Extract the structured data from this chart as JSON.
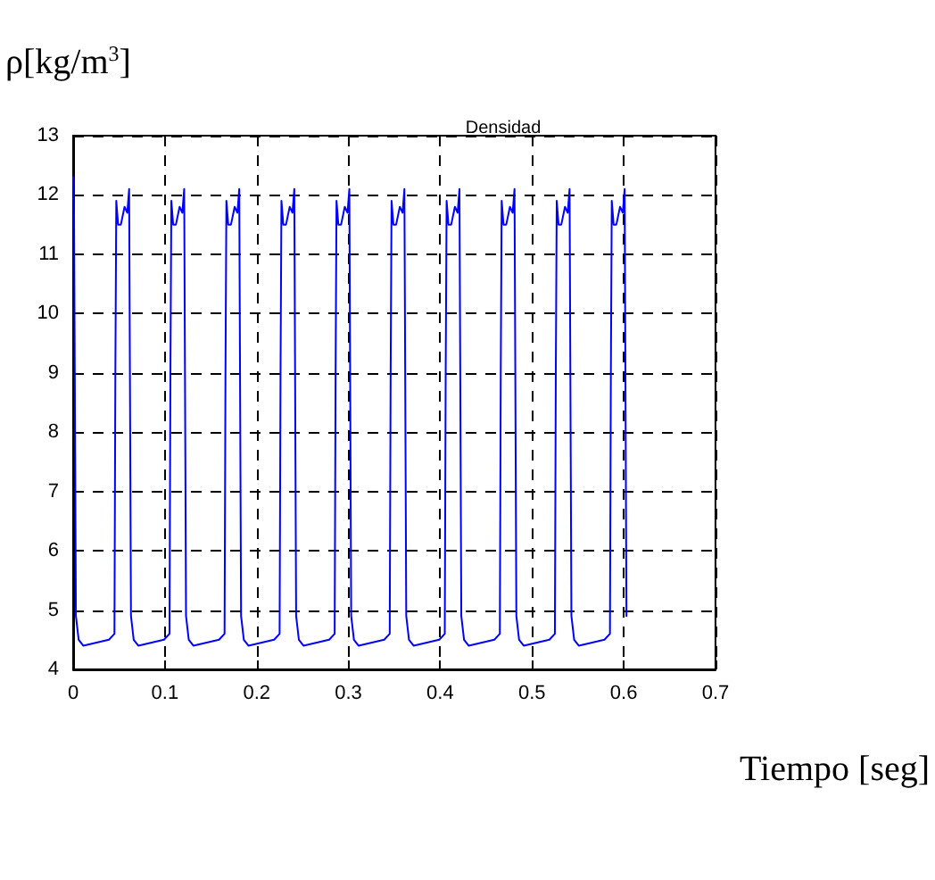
{
  "chart_data": {
    "type": "line",
    "title": "Densidad",
    "xlabel": "Tiempo [seg]",
    "ylabel": "ρ[kg/m$^{3}$]",
    "xlim": [
      0,
      0.7
    ],
    "xticks": [
      0,
      0.1,
      0.2,
      0.3,
      0.4,
      0.5,
      0.6,
      0.7
    ],
    "ylim": [
      4,
      13
    ],
    "yticks": [
      4,
      5,
      6,
      7,
      8,
      9,
      10,
      11,
      12,
      13
    ],
    "grid": true,
    "marker": "none",
    "line_style": "solid",
    "series": [
      {
        "color": "#0000ff",
        "x": [
          0,
          0.001,
          0.003,
          0.006,
          0.011,
          0.039,
          0.045,
          0.046,
          0.047,
          0.049,
          0.052,
          0.056,
          0.059,
          0.061,
          0.063,
          0.066,
          0.071,
          0.099,
          0.105,
          0.106,
          0.107,
          0.109,
          0.112,
          0.116,
          0.119,
          0.121,
          0.123,
          0.126,
          0.131,
          0.159,
          0.165,
          0.166,
          0.167,
          0.169,
          0.172,
          0.176,
          0.179,
          0.181,
          0.183,
          0.186,
          0.191,
          0.219,
          0.225,
          0.226,
          0.227,
          0.229,
          0.232,
          0.236,
          0.239,
          0.241,
          0.243,
          0.246,
          0.251,
          0.279,
          0.285,
          0.286,
          0.287,
          0.289,
          0.292,
          0.296,
          0.299,
          0.301,
          0.303,
          0.306,
          0.311,
          0.339,
          0.345,
          0.346,
          0.347,
          0.349,
          0.352,
          0.356,
          0.359,
          0.361,
          0.363,
          0.366,
          0.371,
          0.399,
          0.405,
          0.406,
          0.407,
          0.409,
          0.412,
          0.416,
          0.419,
          0.421,
          0.423,
          0.426,
          0.431,
          0.459,
          0.465,
          0.466,
          0.467,
          0.469,
          0.472,
          0.476,
          0.479,
          0.481,
          0.483,
          0.486,
          0.491,
          0.519,
          0.525,
          0.526,
          0.527,
          0.529,
          0.532,
          0.536,
          0.539,
          0.541,
          0.543,
          0.546,
          0.551,
          0.579,
          0.585,
          0.586,
          0.587,
          0.589,
          0.592,
          0.596,
          0.599,
          0.601,
          0.603
        ],
        "values": [
          12.3,
          11.6,
          4.9,
          4.5,
          4.4,
          4.5,
          4.6,
          9.0,
          11.9,
          11.5,
          11.5,
          11.8,
          11.7,
          12.1,
          4.9,
          4.5,
          4.4,
          4.5,
          4.6,
          9.0,
          11.9,
          11.5,
          11.5,
          11.8,
          11.7,
          12.1,
          4.9,
          4.5,
          4.4,
          4.5,
          4.6,
          9.0,
          11.9,
          11.5,
          11.5,
          11.8,
          11.7,
          12.1,
          4.9,
          4.5,
          4.4,
          4.5,
          4.6,
          9.0,
          11.9,
          11.5,
          11.5,
          11.8,
          11.7,
          12.1,
          4.9,
          4.5,
          4.4,
          4.5,
          4.6,
          9.0,
          11.9,
          11.5,
          11.5,
          11.8,
          11.7,
          12.1,
          4.9,
          4.5,
          4.4,
          4.5,
          4.6,
          9.0,
          11.9,
          11.5,
          11.5,
          11.8,
          11.7,
          12.1,
          4.9,
          4.5,
          4.4,
          4.5,
          4.6,
          9.0,
          11.9,
          11.5,
          11.5,
          11.8,
          11.7,
          12.1,
          4.9,
          4.5,
          4.4,
          4.5,
          4.6,
          9.0,
          11.9,
          11.5,
          11.5,
          11.8,
          11.7,
          12.1,
          4.9,
          4.5,
          4.4,
          4.5,
          4.6,
          9.0,
          11.9,
          11.5,
          11.5,
          11.8,
          11.7,
          12.1,
          4.9,
          4.5,
          4.4,
          4.5,
          4.6,
          9.0,
          11.9,
          11.5,
          11.5,
          11.8,
          11.7,
          12.1,
          4.9
        ]
      }
    ]
  }
}
